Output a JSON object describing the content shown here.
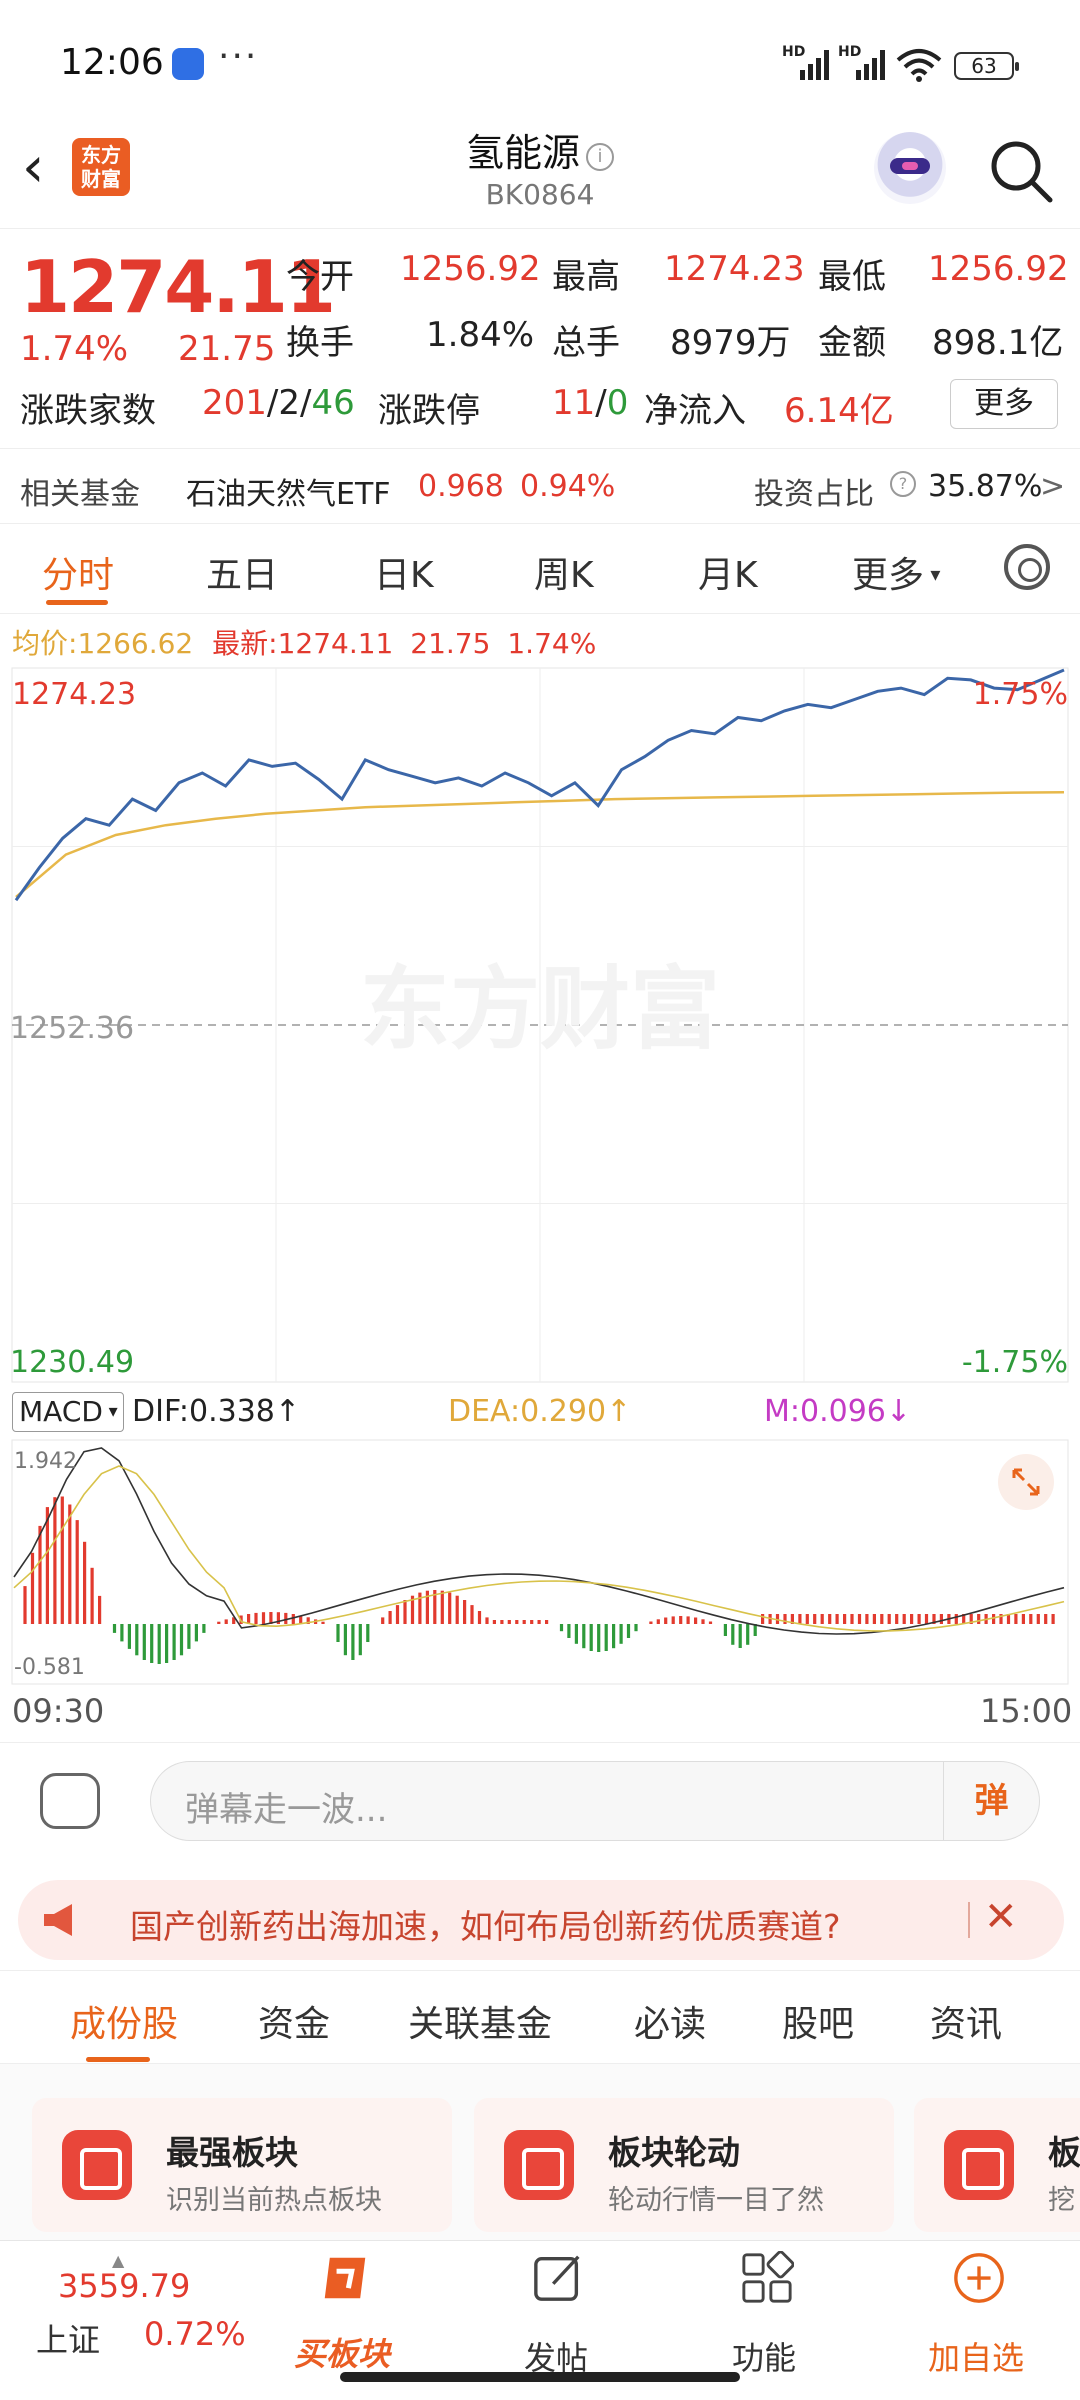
{
  "status": {
    "time": "12:06",
    "more": "···",
    "hd1": "HD",
    "hd2": "HD",
    "battery": "63"
  },
  "header": {
    "back": "‹",
    "logo": "东方\n财富",
    "title": "氢能源",
    "code": "BK0864",
    "info": "i"
  },
  "quote": {
    "price": "1274.11",
    "pct": "1.74%",
    "chg": "21.75",
    "open_label": "今开",
    "open": "1256.92",
    "high_label": "最高",
    "high": "1274.23",
    "low_label": "最低",
    "low": "1256.92",
    "turnover_label": "换手",
    "turnover": "1.84%",
    "volume_label": "总手",
    "volume": "8979万",
    "amount_label": "金额",
    "amount": "898.1亿",
    "updown_label": "涨跌家数",
    "up": "201",
    "slash1": "/",
    "flat": "2",
    "slash2": "/",
    "down": "46",
    "limit_label": "涨跌停",
    "limit_up": "11",
    "slash3": "/",
    "limit_down": "0",
    "inflow_label": "净流入",
    "inflow": "6.14亿",
    "more": "更多"
  },
  "fund": {
    "label": "相关基金",
    "name": "石油天然气ETF",
    "price": "0.968",
    "pct": "0.94%",
    "ratio_label": "投资占比",
    "ratio": "35.87%",
    "arrow": ">"
  },
  "tabs": [
    "分时",
    "五日",
    "日K",
    "周K",
    "月K",
    "更多"
  ],
  "legend": {
    "avg_label": "均价:",
    "avg": "1266.62",
    "latest_label": "最新:",
    "latest": "1274.11",
    "chg": "21.75",
    "pct": "1.74%"
  },
  "chart_data": {
    "type": "line",
    "price_axis": {
      "top": "1274.23",
      "mid": "1252.36",
      "bottom": "1230.49",
      "top_pct": "1.75%",
      "bottom_pct": "-1.75%"
    },
    "ylim": [
      1230.49,
      1274.23
    ],
    "base": 1252.36,
    "x_labels": [
      "09:30",
      "15:00"
    ],
    "series": [
      {
        "name": "最新",
        "color": "#3b66a8",
        "values": [
          1260.0,
          1262.0,
          1263.8,
          1265.0,
          1264.6,
          1266.2,
          1265.5,
          1267.2,
          1267.8,
          1267.0,
          1268.6,
          1268.2,
          1268.4,
          1267.4,
          1266.2,
          1268.6,
          1268.0,
          1267.6,
          1267.2,
          1267.5,
          1267.0,
          1267.8,
          1267.2,
          1266.4,
          1267.2,
          1265.8,
          1268.0,
          1268.8,
          1269.8,
          1270.4,
          1270.2,
          1271.2,
          1271.0,
          1271.6,
          1272.0,
          1271.8,
          1272.3,
          1272.8,
          1273.0,
          1272.6,
          1273.6,
          1273.5,
          1273.0,
          1272.9,
          1273.5,
          1274.11
        ]
      },
      {
        "name": "均价",
        "color": "#e7b84a",
        "values": [
          1260.2,
          1262.8,
          1264.0,
          1264.6,
          1265.0,
          1265.3,
          1265.5,
          1265.7,
          1265.8,
          1265.9,
          1266.0,
          1266.1,
          1266.2,
          1266.25,
          1266.3,
          1266.35,
          1266.4,
          1266.45,
          1266.5,
          1266.55,
          1266.6,
          1266.62
        ]
      }
    ]
  },
  "macd": {
    "select": "MACD",
    "dif_label": "DIF:",
    "dif": "0.338",
    "dea_label": "DEA:",
    "dea": "0.290",
    "m_label": "M:",
    "m": "0.096",
    "top": "1.942",
    "bottom": "-0.581",
    "up_arrow": "↑",
    "down_arrow": "↓"
  },
  "danmu": {
    "placeholder": "弹幕走一波...",
    "button": "弹"
  },
  "notice": {
    "text": "国产创新药出海加速，如何布局创新药优质赛道?",
    "close": "✕"
  },
  "subtabs": [
    "成份股",
    "资金",
    "关联基金",
    "必读",
    "股吧",
    "资讯"
  ],
  "cards": [
    {
      "title": "最强板块",
      "sub": "识别当前热点板块"
    },
    {
      "title": "板块轮动",
      "sub": "轮动行情一目了然"
    },
    {
      "title": "板",
      "sub": "挖"
    }
  ],
  "bottomnav": {
    "index_value": "3559.79",
    "index_name": "上证",
    "index_pct": "0.72%",
    "items": [
      "买板块",
      "发帖",
      "功能",
      "加自选"
    ]
  }
}
